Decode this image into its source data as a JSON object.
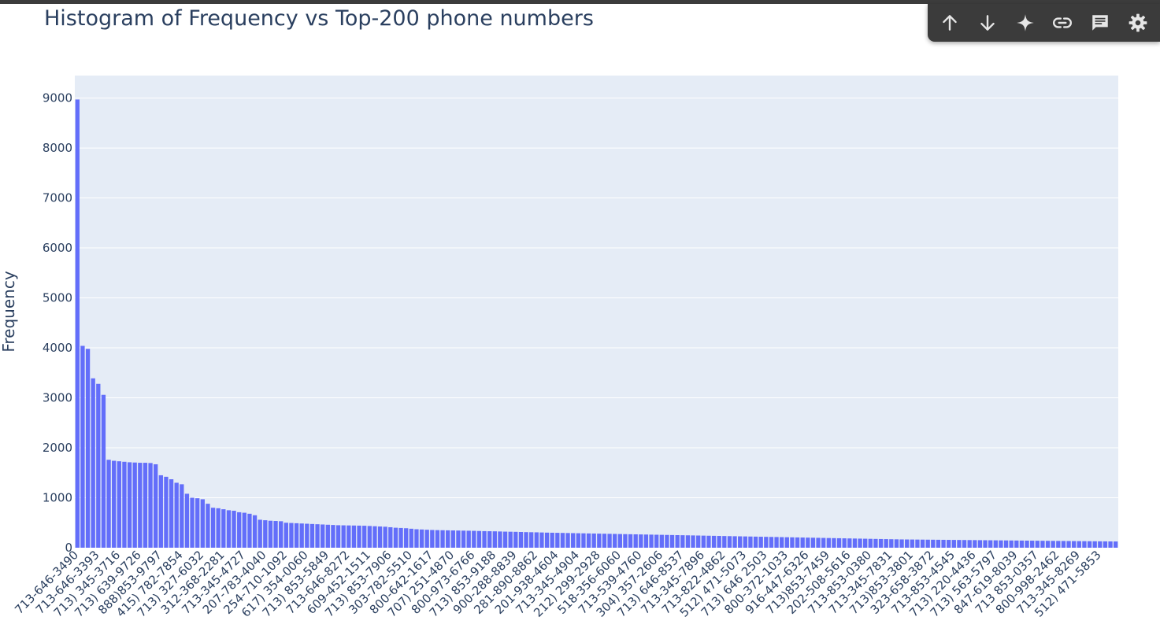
{
  "toolbar": {
    "buttons": [
      {
        "name": "arrow-up-icon"
      },
      {
        "name": "arrow-down-icon"
      },
      {
        "name": "sparkle-icon"
      },
      {
        "name": "link-icon"
      },
      {
        "name": "comment-icon"
      },
      {
        "name": "gear-icon"
      }
    ],
    "icon_color": "#e6e6e6"
  },
  "chart_data": {
    "type": "bar",
    "title": "Histogram of Frequency vs Top-200 phone numbers",
    "xlabel": "",
    "ylabel": "Frequency",
    "ylim": [
      0,
      9450
    ],
    "yticks": [
      0,
      1000,
      2000,
      3000,
      4000,
      5000,
      6000,
      7000,
      8000,
      9000
    ],
    "grid": true,
    "bar_color": "#636efa",
    "plot_bg": "#e5ecf6",
    "tick_labels": [
      "713-646-3490",
      "713-646-3393",
      "713) 345-3716",
      "713) 639-9726",
      "888)853-9797",
      "415) 782-7854",
      "713) 327-6032",
      "312-368-2281",
      "713-345-4727",
      "207-783-4040",
      "254-710-1092",
      "617) 354-0060",
      "713) 853-5849",
      "713-646-8272",
      "609-452-1511",
      "713) 853-7906",
      "303-782-5510",
      "800-642-1617",
      "707) 251-4870",
      "800-973-6766",
      "713) 853-9188",
      "900-288-8839",
      "281-890-8862",
      "201-938-4604",
      "713-345-4904",
      "212) 299-2928",
      "518-356-6060",
      "713-539-4760",
      "304) 357-2606",
      "713) 646-8537",
      "713-345-7896",
      "713-822-4862",
      "512) 471-5073",
      "713) 646 2503",
      "800-372-1033",
      "916-447-6326",
      "713)853-7459",
      "202-508-5616",
      "713-853-0380",
      "713-345-7831",
      "713)853-3801",
      "323-658-3872",
      "713-853-4545",
      "713) 220-4436",
      "713) 563-5797",
      "847-619-8039",
      "713 853-0357",
      "800-998-2462",
      "713-345-8269",
      "512) 471-5853"
    ],
    "values": [
      8970,
      4040,
      3980,
      3390,
      3280,
      3060,
      1760,
      1740,
      1730,
      1720,
      1710,
      1705,
      1700,
      1700,
      1695,
      1670,
      1450,
      1420,
      1370,
      1300,
      1270,
      1080,
      1000,
      990,
      970,
      880,
      800,
      790,
      770,
      750,
      740,
      710,
      700,
      680,
      650,
      560,
      550,
      540,
      535,
      530,
      500,
      495,
      490,
      485,
      480,
      475,
      470,
      465,
      460,
      455,
      450,
      448,
      446,
      444,
      442,
      440,
      435,
      430,
      425,
      420,
      410,
      400,
      395,
      390,
      380,
      370,
      365,
      360,
      355,
      352,
      350,
      348,
      346,
      344,
      342,
      340,
      338,
      335,
      332,
      330,
      328,
      325,
      322,
      320,
      318,
      315,
      312,
      310,
      308,
      305,
      302,
      300,
      298,
      296,
      294,
      292,
      290,
      288,
      286,
      284,
      282,
      280,
      278,
      276,
      274,
      272,
      270,
      268,
      266,
      264,
      262,
      260,
      258,
      256,
      254,
      252,
      250,
      248,
      246,
      244,
      242,
      240,
      238,
      236,
      234,
      232,
      230,
      228,
      226,
      224,
      222,
      220,
      218,
      216,
      214,
      212,
      210,
      208,
      206,
      204,
      202,
      200,
      198,
      196,
      194,
      192,
      190,
      188,
      186,
      184,
      182,
      180,
      178,
      176,
      174,
      172,
      170,
      168,
      166,
      165,
      164,
      163,
      162,
      161,
      160,
      159,
      158,
      157,
      156,
      155,
      154,
      153,
      152,
      151,
      150,
      149,
      148,
      147,
      146,
      145,
      144,
      143,
      142,
      141,
      140,
      139,
      138,
      137,
      136,
      135,
      134,
      133,
      132,
      131,
      130,
      129,
      128,
      127,
      126,
      125
    ]
  }
}
